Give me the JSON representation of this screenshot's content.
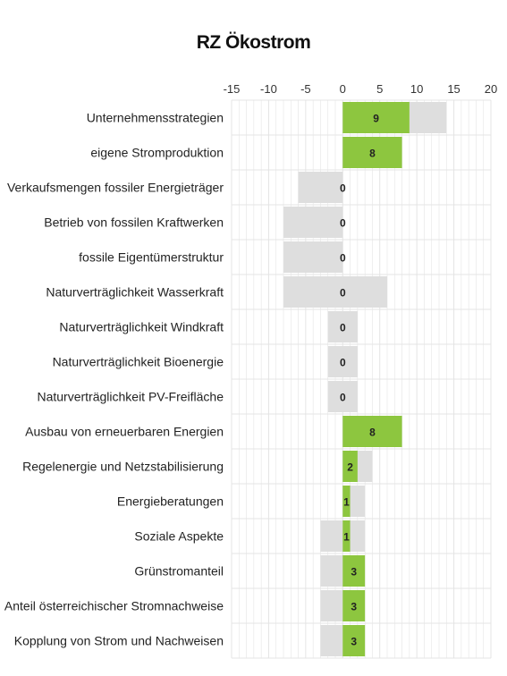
{
  "chart_data": {
    "type": "bar",
    "title": "RZ Ökostrom",
    "xlim": [
      -15,
      20
    ],
    "xticks": [
      -15,
      -10,
      -5,
      0,
      5,
      10,
      15,
      20
    ],
    "categories": [
      "Unternehmensstrategien",
      "eigene Stromproduktion",
      "Verkaufsmengen fossiler Energieträger",
      "Betrieb von fossilen Kraftwerken",
      "fossile Eigentümerstruktur",
      "Naturverträglichkeit Wasserkraft",
      "Naturverträglichkeit Windkraft",
      "Naturverträglichkeit Bioenergie",
      "Naturverträglichkeit PV-Freifläche",
      "Ausbau von erneuerbaren Energien",
      "Regelenergie und Netzstabilisierung",
      "Energieberatungen",
      "Soziale Aspekte",
      "Grünstromanteil",
      "Anteil österreichischer Stromnachweise",
      "Kopplung von Strom und Nachweisen"
    ],
    "series": [
      {
        "role": "score",
        "values": [
          9,
          8,
          0,
          0,
          0,
          0,
          0,
          0,
          0,
          8,
          2,
          1,
          1,
          3,
          3,
          3
        ]
      },
      {
        "role": "range",
        "min": [
          0,
          0,
          -6,
          -8,
          -8,
          -8,
          -2,
          -2,
          -2,
          0,
          0,
          0,
          -3,
          -3,
          -3,
          -3
        ],
        "max": [
          14,
          8,
          0,
          0,
          0,
          6,
          2,
          2,
          2,
          8,
          4,
          3,
          3,
          3,
          3,
          3
        ]
      }
    ],
    "labels": [
      "9",
      "8",
      "0",
      "0",
      "0",
      "0",
      "0",
      "0",
      "0",
      "8",
      "2",
      "1",
      "1",
      "3",
      "3",
      "3"
    ],
    "colors": {
      "score": "#8dc63f",
      "range": "#dedede",
      "grid": "#e4e4e4"
    },
    "grid": true
  }
}
